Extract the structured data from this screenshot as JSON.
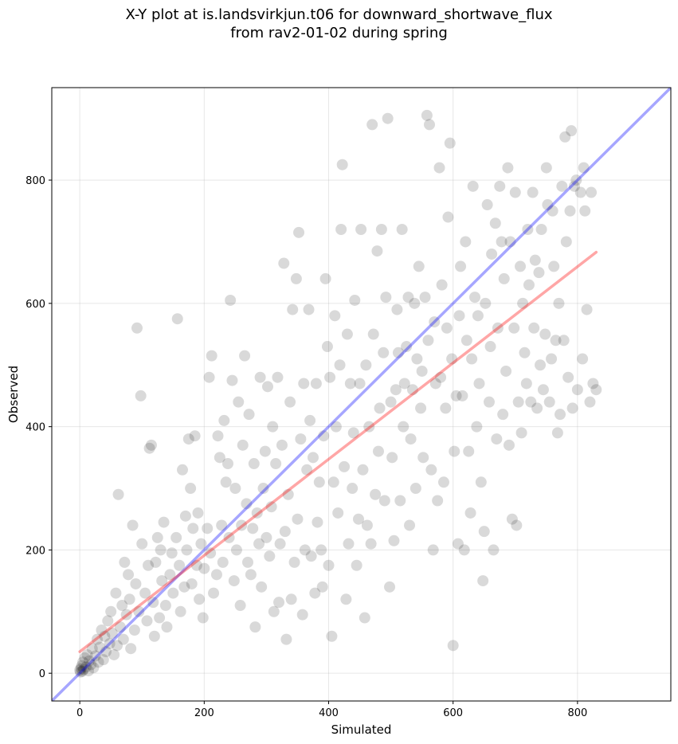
{
  "title_line1": "X-Y plot at is.landsvirkjun.t06 for downward_shortwave_flux",
  "title_line2": "from rav2-01-02 during spring",
  "chart_data": {
    "type": "scatter",
    "title": "X-Y plot at is.landsvirkjun.t06 for downward_shortwave_flux\nfrom rav2-01-02 during spring",
    "xlabel": "Simulated",
    "ylabel": "Observed",
    "xlim": [
      -45,
      950
    ],
    "ylim": [
      -45,
      950
    ],
    "x_ticks": [
      0,
      200,
      400,
      600,
      800
    ],
    "y_ticks": [
      0,
      200,
      400,
      600,
      800
    ],
    "grid": true,
    "point_color": "#000000",
    "point_alpha": 0.15,
    "lines": [
      {
        "role": "one-to-one",
        "color": "#0000ff",
        "x": [
          -45,
          950
        ],
        "y": [
          -45,
          950
        ]
      },
      {
        "role": "regression",
        "color": "#ff0000",
        "x": [
          0,
          830
        ],
        "y": [
          35,
          683
        ]
      }
    ],
    "points": [
      [
        0,
        5
      ],
      [
        1,
        2
      ],
      [
        2,
        8
      ],
      [
        3,
        12
      ],
      [
        4,
        3
      ],
      [
        5,
        18
      ],
      [
        6,
        6
      ],
      [
        8,
        25
      ],
      [
        10,
        10
      ],
      [
        12,
        30
      ],
      [
        14,
        4
      ],
      [
        15,
        20
      ],
      [
        18,
        14
      ],
      [
        20,
        40
      ],
      [
        22,
        9
      ],
      [
        25,
        28
      ],
      [
        28,
        55
      ],
      [
        30,
        18
      ],
      [
        32,
        42
      ],
      [
        35,
        70
      ],
      [
        38,
        22
      ],
      [
        40,
        60
      ],
      [
        42,
        35
      ],
      [
        45,
        85
      ],
      [
        48,
        48
      ],
      [
        50,
        100
      ],
      [
        52,
        65
      ],
      [
        55,
        30
      ],
      [
        58,
        130
      ],
      [
        60,
        45
      ],
      [
        62,
        290
      ],
      [
        65,
        75
      ],
      [
        68,
        110
      ],
      [
        70,
        55
      ],
      [
        72,
        180
      ],
      [
        75,
        95
      ],
      [
        78,
        160
      ],
      [
        80,
        120
      ],
      [
        82,
        40
      ],
      [
        85,
        240
      ],
      [
        88,
        70
      ],
      [
        90,
        145
      ],
      [
        92,
        560
      ],
      [
        95,
        100
      ],
      [
        98,
        450
      ],
      [
        100,
        210
      ],
      [
        105,
        130
      ],
      [
        108,
        85
      ],
      [
        110,
        175
      ],
      [
        112,
        365
      ],
      [
        115,
        370
      ],
      [
        118,
        115
      ],
      [
        120,
        60
      ],
      [
        122,
        180
      ],
      [
        125,
        220
      ],
      [
        128,
        90
      ],
      [
        130,
        200
      ],
      [
        132,
        150
      ],
      [
        135,
        245
      ],
      [
        138,
        110
      ],
      [
        140,
        75
      ],
      [
        145,
        160
      ],
      [
        148,
        195
      ],
      [
        150,
        130
      ],
      [
        155,
        220
      ],
      [
        157,
        575
      ],
      [
        160,
        175
      ],
      [
        162,
        100
      ],
      [
        165,
        330
      ],
      [
        168,
        140
      ],
      [
        170,
        255
      ],
      [
        172,
        200
      ],
      [
        175,
        380
      ],
      [
        178,
        300
      ],
      [
        180,
        145
      ],
      [
        182,
        235
      ],
      [
        185,
        385
      ],
      [
        188,
        175
      ],
      [
        190,
        260
      ],
      [
        192,
        120
      ],
      [
        195,
        210
      ],
      [
        198,
        90
      ],
      [
        200,
        170
      ],
      [
        205,
        235
      ],
      [
        208,
        480
      ],
      [
        210,
        195
      ],
      [
        212,
        515
      ],
      [
        215,
        130
      ],
      [
        220,
        160
      ],
      [
        222,
        385
      ],
      [
        225,
        350
      ],
      [
        228,
        240
      ],
      [
        230,
        180
      ],
      [
        232,
        410
      ],
      [
        235,
        310
      ],
      [
        238,
        340
      ],
      [
        240,
        220
      ],
      [
        242,
        605
      ],
      [
        245,
        475
      ],
      [
        248,
        150
      ],
      [
        250,
        300
      ],
      [
        252,
        200
      ],
      [
        255,
        440
      ],
      [
        258,
        110
      ],
      [
        260,
        240
      ],
      [
        262,
        370
      ],
      [
        265,
        515
      ],
      [
        268,
        275
      ],
      [
        270,
        180
      ],
      [
        272,
        420
      ],
      [
        275,
        160
      ],
      [
        278,
        235
      ],
      [
        280,
        340
      ],
      [
        282,
        75
      ],
      [
        285,
        260
      ],
      [
        288,
        210
      ],
      [
        290,
        480
      ],
      [
        292,
        140
      ],
      [
        295,
        300
      ],
      [
        298,
        360
      ],
      [
        300,
        220
      ],
      [
        302,
        465
      ],
      [
        305,
        190
      ],
      [
        308,
        270
      ],
      [
        310,
        400
      ],
      [
        312,
        100
      ],
      [
        315,
        340
      ],
      [
        318,
        480
      ],
      [
        320,
        115
      ],
      [
        322,
        210
      ],
      [
        325,
        370
      ],
      [
        328,
        665
      ],
      [
        330,
        230
      ],
      [
        332,
        55
      ],
      [
        335,
        290
      ],
      [
        338,
        440
      ],
      [
        340,
        120
      ],
      [
        342,
        590
      ],
      [
        345,
        180
      ],
      [
        348,
        640
      ],
      [
        350,
        250
      ],
      [
        352,
        715
      ],
      [
        355,
        380
      ],
      [
        358,
        95
      ],
      [
        360,
        470
      ],
      [
        362,
        200
      ],
      [
        365,
        330
      ],
      [
        368,
        590
      ],
      [
        370,
        410
      ],
      [
        372,
        190
      ],
      [
        375,
        350
      ],
      [
        378,
        130
      ],
      [
        380,
        470
      ],
      [
        382,
        245
      ],
      [
        385,
        310
      ],
      [
        388,
        200
      ],
      [
        390,
        140
      ],
      [
        392,
        385
      ],
      [
        395,
        640
      ],
      [
        398,
        530
      ],
      [
        400,
        175
      ],
      [
        402,
        480
      ],
      [
        405,
        60
      ],
      [
        408,
        310
      ],
      [
        410,
        580
      ],
      [
        412,
        400
      ],
      [
        415,
        260
      ],
      [
        418,
        500
      ],
      [
        420,
        720
      ],
      [
        422,
        825
      ],
      [
        425,
        335
      ],
      [
        428,
        120
      ],
      [
        430,
        550
      ],
      [
        432,
        210
      ],
      [
        435,
        470
      ],
      [
        438,
        300
      ],
      [
        440,
        390
      ],
      [
        442,
        605
      ],
      [
        445,
        175
      ],
      [
        448,
        250
      ],
      [
        450,
        470
      ],
      [
        452,
        720
      ],
      [
        455,
        330
      ],
      [
        458,
        90
      ],
      [
        460,
        500
      ],
      [
        462,
        240
      ],
      [
        465,
        400
      ],
      [
        468,
        210
      ],
      [
        470,
        890
      ],
      [
        472,
        550
      ],
      [
        475,
        290
      ],
      [
        478,
        685
      ],
      [
        480,
        360
      ],
      [
        482,
        430
      ],
      [
        485,
        720
      ],
      [
        488,
        520
      ],
      [
        490,
        280
      ],
      [
        492,
        610
      ],
      [
        495,
        900
      ],
      [
        498,
        140
      ],
      [
        500,
        440
      ],
      [
        502,
        350
      ],
      [
        505,
        215
      ],
      [
        508,
        460
      ],
      [
        510,
        590
      ],
      [
        512,
        520
      ],
      [
        515,
        280
      ],
      [
        518,
        720
      ],
      [
        520,
        400
      ],
      [
        522,
        470
      ],
      [
        525,
        530
      ],
      [
        528,
        610
      ],
      [
        530,
        240
      ],
      [
        532,
        380
      ],
      [
        535,
        460
      ],
      [
        538,
        600
      ],
      [
        540,
        300
      ],
      [
        542,
        510
      ],
      [
        545,
        660
      ],
      [
        548,
        430
      ],
      [
        550,
        490
      ],
      [
        552,
        350
      ],
      [
        555,
        610
      ],
      [
        558,
        905
      ],
      [
        560,
        540
      ],
      [
        562,
        890
      ],
      [
        565,
        330
      ],
      [
        568,
        200
      ],
      [
        570,
        570
      ],
      [
        572,
        470
      ],
      [
        575,
        280
      ],
      [
        578,
        820
      ],
      [
        580,
        480
      ],
      [
        582,
        630
      ],
      [
        585,
        310
      ],
      [
        588,
        430
      ],
      [
        590,
        560
      ],
      [
        592,
        740
      ],
      [
        595,
        860
      ],
      [
        598,
        510
      ],
      [
        600,
        45
      ],
      [
        602,
        360
      ],
      [
        605,
        450
      ],
      [
        608,
        210
      ],
      [
        610,
        580
      ],
      [
        612,
        660
      ],
      [
        615,
        450
      ],
      [
        618,
        200
      ],
      [
        620,
        700
      ],
      [
        622,
        540
      ],
      [
        625,
        360
      ],
      [
        628,
        260
      ],
      [
        630,
        510
      ],
      [
        632,
        790
      ],
      [
        635,
        610
      ],
      [
        638,
        400
      ],
      [
        640,
        580
      ],
      [
        642,
        470
      ],
      [
        645,
        310
      ],
      [
        648,
        150
      ],
      [
        650,
        230
      ],
      [
        652,
        600
      ],
      [
        655,
        760
      ],
      [
        658,
        440
      ],
      [
        660,
        530
      ],
      [
        662,
        680
      ],
      [
        665,
        200
      ],
      [
        668,
        730
      ],
      [
        670,
        380
      ],
      [
        672,
        560
      ],
      [
        675,
        790
      ],
      [
        678,
        700
      ],
      [
        680,
        420
      ],
      [
        682,
        640
      ],
      [
        685,
        490
      ],
      [
        688,
        820
      ],
      [
        690,
        370
      ],
      [
        692,
        700
      ],
      [
        695,
        250
      ],
      [
        698,
        560
      ],
      [
        700,
        780
      ],
      [
        702,
        240
      ],
      [
        705,
        440
      ],
      [
        708,
        660
      ],
      [
        710,
        390
      ],
      [
        712,
        600
      ],
      [
        715,
        520
      ],
      [
        718,
        470
      ],
      [
        720,
        720
      ],
      [
        722,
        630
      ],
      [
        725,
        440
      ],
      [
        728,
        780
      ],
      [
        730,
        560
      ],
      [
        732,
        670
      ],
      [
        735,
        430
      ],
      [
        738,
        650
      ],
      [
        740,
        500
      ],
      [
        742,
        720
      ],
      [
        745,
        460
      ],
      [
        748,
        550
      ],
      [
        750,
        820
      ],
      [
        752,
        760
      ],
      [
        755,
        440
      ],
      [
        758,
        510
      ],
      [
        760,
        750
      ],
      [
        762,
        660
      ],
      [
        765,
        540
      ],
      [
        768,
        390
      ],
      [
        770,
        600
      ],
      [
        772,
        420
      ],
      [
        775,
        790
      ],
      [
        778,
        540
      ],
      [
        780,
        870
      ],
      [
        782,
        700
      ],
      [
        785,
        480
      ],
      [
        788,
        750
      ],
      [
        790,
        880
      ],
      [
        792,
        430
      ],
      [
        795,
        790
      ],
      [
        798,
        800
      ],
      [
        800,
        460
      ],
      [
        805,
        780
      ],
      [
        808,
        510
      ],
      [
        810,
        820
      ],
      [
        812,
        750
      ],
      [
        815,
        590
      ],
      [
        820,
        440
      ],
      [
        822,
        780
      ],
      [
        825,
        470
      ],
      [
        830,
        460
      ]
    ]
  }
}
